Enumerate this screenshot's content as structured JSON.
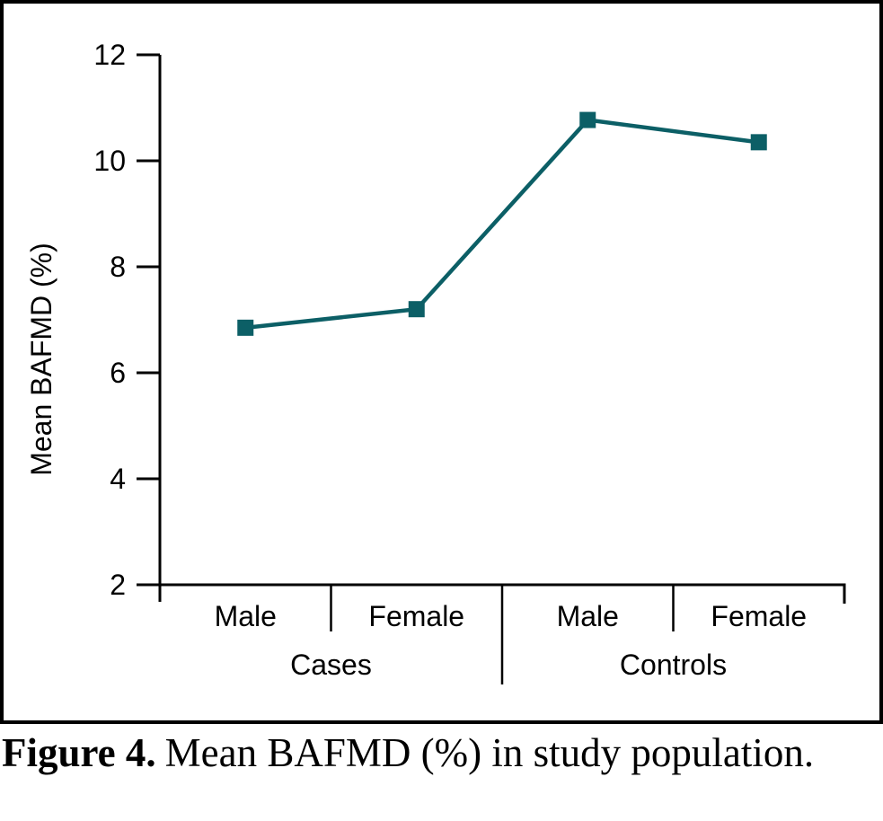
{
  "figure_caption": {
    "label": "Figure 4.",
    "text": "Mean BAFMD (%) in study population."
  },
  "panel": {
    "background": "#ffffff",
    "border_color": "#000000",
    "axis_color": "#000000"
  },
  "chart_data": {
    "type": "line",
    "title": "",
    "ylabel": "Mean BAFMD (%)",
    "ylim": [
      2,
      12
    ],
    "yticks": [
      2,
      4,
      6,
      8,
      10,
      12
    ],
    "grid": false,
    "legend": "none",
    "groups": [
      {
        "label": "Cases",
        "categories": [
          "Male",
          "Female"
        ]
      },
      {
        "label": "Controls",
        "categories": [
          "Male",
          "Female"
        ]
      }
    ],
    "categories": [
      "Male",
      "Female",
      "Male",
      "Female"
    ],
    "series": [
      {
        "name": "Mean BAFMD (%)",
        "marker": "square",
        "color": "#0C5F66",
        "values": [
          6.85,
          7.2,
          10.77,
          10.35
        ]
      }
    ]
  }
}
